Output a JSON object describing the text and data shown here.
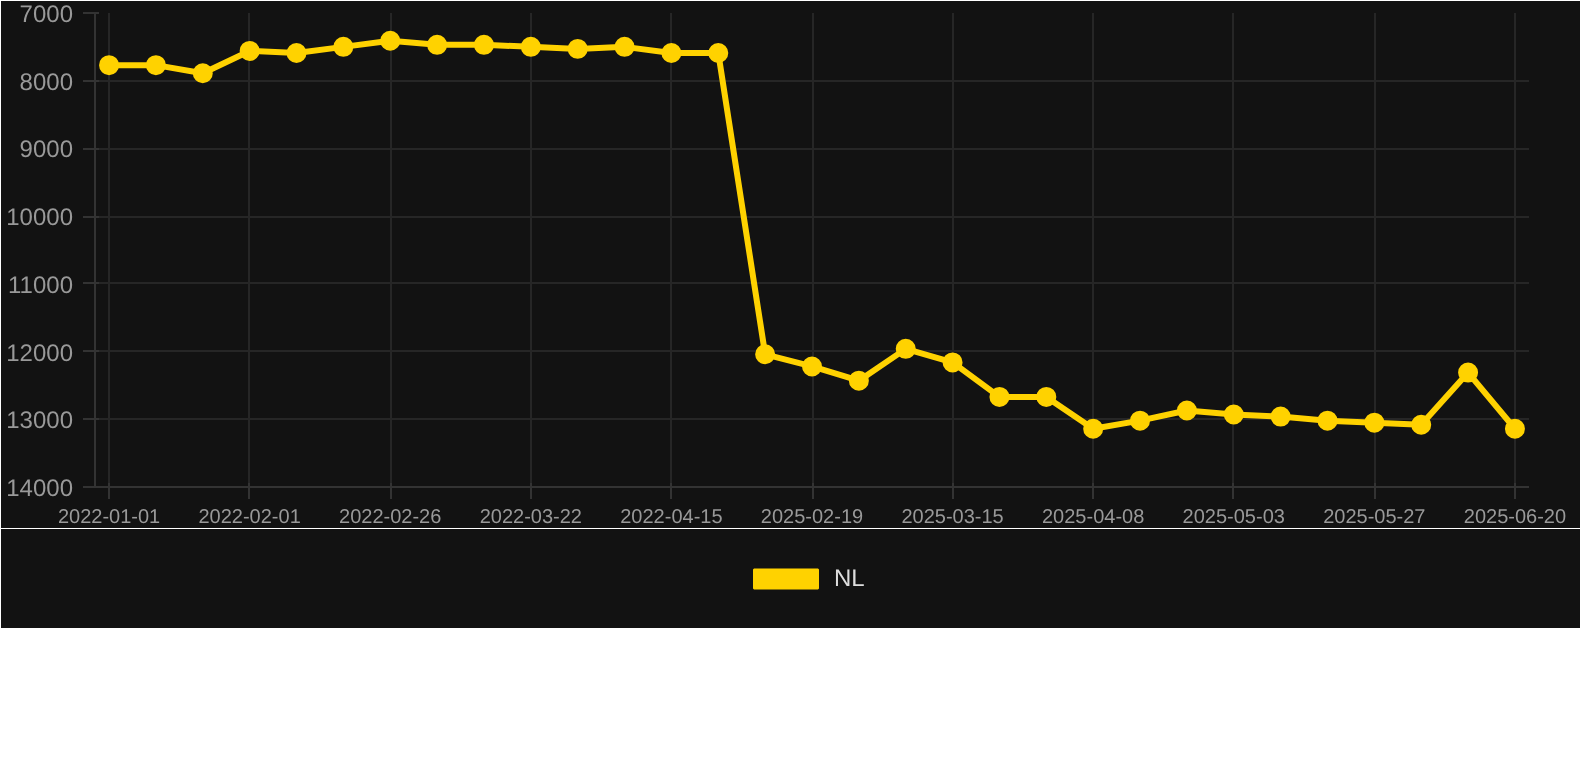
{
  "chart_data": {
    "type": "line",
    "categories": [
      "2022-01-01",
      null,
      null,
      "2022-02-01",
      null,
      null,
      "2022-02-26",
      null,
      null,
      "2022-03-22",
      null,
      null,
      "2022-04-15",
      null,
      null,
      "2025-02-19",
      null,
      null,
      "2025-03-15",
      null,
      null,
      "2025-04-08",
      null,
      null,
      "2025-05-03",
      null,
      null,
      "2025-05-27",
      null,
      null,
      "2025-06-20"
    ],
    "series": [
      {
        "name": "NL",
        "color": "#ffd200",
        "values": [
          7770,
          7770,
          7890,
          7560,
          7590,
          7500,
          7410,
          7470,
          7470,
          7500,
          7530,
          7500,
          7590,
          7590,
          12040,
          12220,
          12430,
          11960,
          12160,
          12670,
          12670,
          13140,
          13020,
          12870,
          12930,
          12960,
          13020,
          13050,
          13080,
          12310,
          13140
        ]
      }
    ],
    "ylim": [
      14000,
      7000
    ],
    "yticks": [
      7000,
      8000,
      9000,
      10000,
      11000,
      12000,
      13000,
      14000
    ],
    "grid": true,
    "legend": "bottom",
    "marker": "circle",
    "line_style": "solid"
  }
}
